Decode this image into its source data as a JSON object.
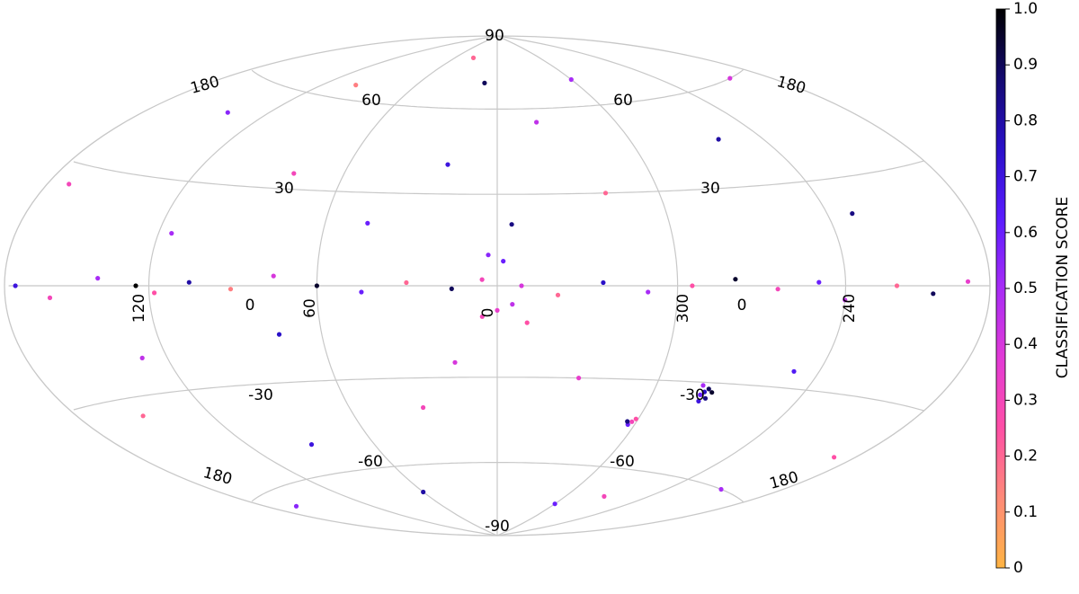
{
  "chart_data": {
    "type": "scatter",
    "projection": "hammer",
    "lon_grid": [
      -120,
      -60,
      0,
      60,
      120
    ],
    "lat_grid": [
      -60,
      -30,
      0,
      30,
      60
    ],
    "annotations": [
      "90",
      "180",
      "60",
      "60",
      "180",
      "30",
      "30",
      "120",
      "0",
      "60",
      "0",
      "300",
      "0",
      "240",
      "-30",
      "-30",
      "-60",
      "-60",
      "180",
      "180",
      "-90"
    ],
    "x": [
      5,
      15,
      30,
      45,
      60,
      75,
      90,
      105,
      118,
      125,
      140,
      160,
      175,
      190,
      205,
      220,
      240,
      250,
      265,
      280,
      295,
      310,
      325,
      340,
      352,
      0,
      5,
      355,
      358,
      3,
      350,
      20,
      80,
      140,
      200,
      260,
      320,
      10,
      100,
      300,
      45,
      170,
      230,
      340,
      30,
      90,
      150,
      210,
      250,
      330,
      60,
      130,
      190,
      300,
      15,
      75,
      115,
      355,
      270,
      165,
      35,
      280,
      279,
      281,
      278,
      282,
      277,
      280,
      302,
      303,
      301,
      304
    ],
    "series": [
      {
        "name": "sources",
        "values": [
          2,
          -1,
          1,
          -2,
          0,
          3,
          -1,
          1,
          -2,
          0,
          2,
          -3,
          0,
          1,
          -2,
          0,
          -4,
          1,
          -1,
          2,
          0,
          -2,
          1,
          -3,
          0,
          -8,
          -10,
          -6,
          8,
          10,
          -12,
          40,
          35,
          50,
          60,
          45,
          30,
          70,
          65,
          70,
          20,
          25,
          20,
          55,
          -40,
          -50,
          -35,
          -60,
          -25,
          -30,
          -70,
          -20,
          -45,
          -75,
          -25,
          -15,
          15,
          20,
          -70,
          -65,
          80,
          -33,
          -32,
          -34,
          -35,
          -31,
          -33,
          -36,
          -44,
          -45,
          -43,
          -44
        ],
        "scores": [
          0.3,
          0.9,
          0.2,
          0.6,
          0.95,
          0.4,
          0.15,
          0.8,
          0.25,
          1.0,
          0.5,
          0.3,
          0.7,
          0.35,
          0.9,
          0.2,
          0.45,
          0.6,
          0.3,
          0.95,
          0.25,
          0.5,
          0.75,
          0.2,
          0.4,
          0.35,
          0.3,
          0.45,
          0.6,
          0.55,
          0.25,
          0.7,
          0.3,
          0.55,
          0.4,
          0.8,
          0.2,
          0.9,
          0.15,
          0.5,
          0.6,
          0.3,
          0.85,
          0.45,
          0.3,
          0.7,
          0.2,
          0.5,
          0.65,
          0.35,
          0.8,
          0.45,
          0.25,
          0.6,
          0.4,
          0.75,
          0.5,
          0.85,
          0.3,
          0.55,
          0.2,
          0.75,
          0.9,
          0.6,
          0.85,
          0.5,
          0.95,
          0.7,
          0.3,
          0.6,
          0.25,
          0.85
        ]
      }
    ],
    "colormap": [
      "#ffb443",
      "#ff8a78",
      "#ff4fa6",
      "#e23ad6",
      "#a82cf6",
      "#5a1cff",
      "#2a10c8",
      "#140a70",
      "#000000"
    ],
    "colorbar": {
      "label": "CLASSIFICATION SCORE",
      "lim": [
        0,
        1
      ],
      "ticks": [
        0,
        0.1,
        0.2,
        0.3,
        0.4,
        0.5,
        0.6,
        0.7,
        0.8,
        0.9,
        {
          "value": 1,
          "label": "1.0"
        }
      ]
    }
  }
}
